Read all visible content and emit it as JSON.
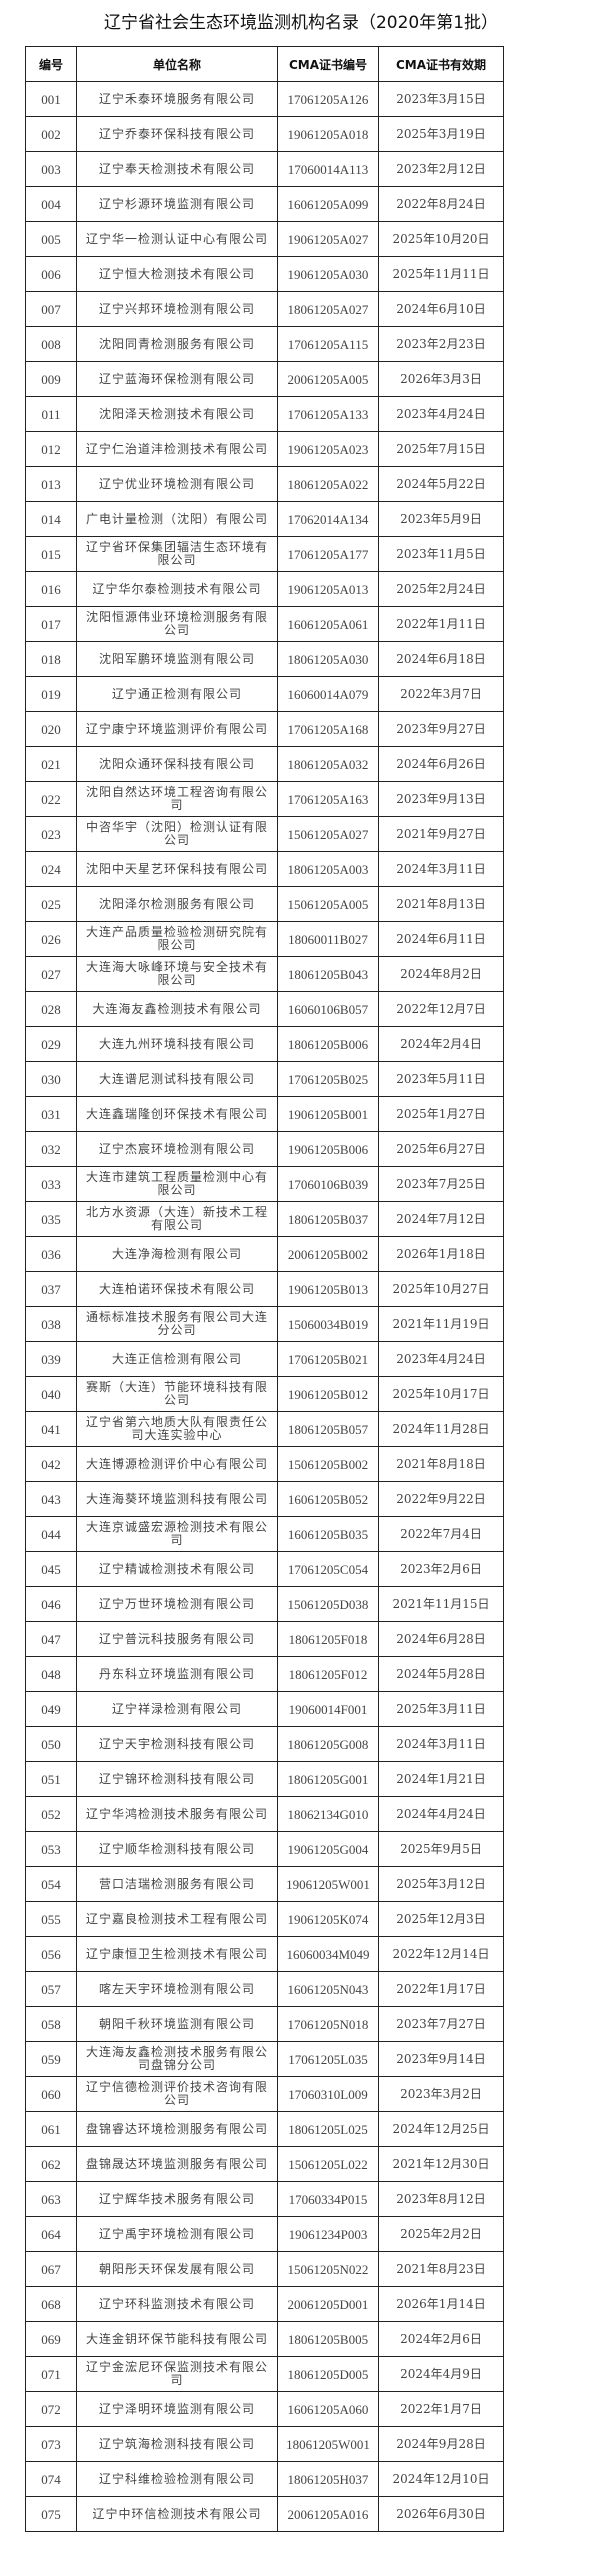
{
  "title": "辽宁省社会生态环境监测机构名录（2020年第1批）",
  "headers": [
    "编号",
    "单位名称",
    "CMA证书编号",
    "CMA证书有效期"
  ],
  "rows": [
    [
      "001",
      "辽宁禾泰环境服务有限公司",
      "17061205A126",
      "2023年3月15日"
    ],
    [
      "002",
      "辽宁乔泰环保科技有限公司",
      "19061205A018",
      "2025年3月19日"
    ],
    [
      "003",
      "辽宁奉天检测技术有限公司",
      "17060014A113",
      "2023年2月12日"
    ],
    [
      "004",
      "辽宁杉源环境监测有限公司",
      "16061205A099",
      "2022年8月24日"
    ],
    [
      "005",
      "辽宁华一检测认证中心有限公司",
      "19061205A027",
      "2025年10月20日"
    ],
    [
      "006",
      "辽宁恒大检测技术有限公司",
      "19061205A030",
      "2025年11月11日"
    ],
    [
      "007",
      "辽宁兴邦环境检测有限公司",
      "18061205A027",
      "2024年6月10日"
    ],
    [
      "008",
      "沈阳同青检测服务有限公司",
      "17061205A115",
      "2023年2月23日"
    ],
    [
      "009",
      "辽宁蓝海环保检测有限公司",
      "20061205A005",
      "2026年3月3日"
    ],
    [
      "011",
      "沈阳泽天检测技术有限公司",
      "17061205A133",
      "2023年4月24日"
    ],
    [
      "012",
      "辽宁仁治道沣检测技术有限公司",
      "19061205A023",
      "2025年7月15日"
    ],
    [
      "013",
      "辽宁优业环境检测有限公司",
      "18061205A022",
      "2024年5月22日"
    ],
    [
      "014",
      "广电计量检测（沈阳）有限公司",
      "17062014A134",
      "2023年5月9日"
    ],
    [
      "015",
      "辽宁省环保集团辐洁生态环境有限公司",
      "17061205A177",
      "2023年11月5日"
    ],
    [
      "016",
      "辽宁华尔泰检测技术有限公司",
      "19061205A013",
      "2025年2月24日"
    ],
    [
      "017",
      "沈阳恒源伟业环境检测服务有限公司",
      "16061205A061",
      "2022年1月11日"
    ],
    [
      "018",
      "沈阳军鹏环境监测有限公司",
      "18061205A030",
      "2024年6月18日"
    ],
    [
      "019",
      "辽宁通正检测有限公司",
      "16060014A079",
      "2022年3月7日"
    ],
    [
      "020",
      "辽宁康宁环境监测评价有限公司",
      "17061205A168",
      "2023年9月27日"
    ],
    [
      "021",
      "沈阳众通环保科技有限公司",
      "18061205A032",
      "2024年6月26日"
    ],
    [
      "022",
      "沈阳自然达环境工程咨询有限公司",
      "17061205A163",
      "2023年9月13日"
    ],
    [
      "023",
      "中咨华宇（沈阳）检测认证有限公司",
      "15061205A027",
      "2021年9月27日"
    ],
    [
      "024",
      "沈阳中天星艺环保科技有限公司",
      "18061205A003",
      "2024年3月11日"
    ],
    [
      "025",
      "沈阳泽尔检测服务有限公司",
      "15061205A005",
      "2021年8月13日"
    ],
    [
      "026",
      "大连产品质量检验检测研究院有限公司",
      "18060011B027",
      "2024年6月11日"
    ],
    [
      "027",
      "大连海大咏峰环境与安全技术有限公司",
      "18061205B043",
      "2024年8月2日"
    ],
    [
      "028",
      "大连海友鑫检测技术有限公司",
      "16060106B057",
      "2022年12月7日"
    ],
    [
      "029",
      "大连九州环境科技有限公司",
      "18061205B006",
      "2024年2月4日"
    ],
    [
      "030",
      "大连谱尼测试科技有限公司",
      "17061205B025",
      "2023年5月11日"
    ],
    [
      "031",
      "大连鑫瑞隆创环保技术有限公司",
      "19061205B001",
      "2025年1月27日"
    ],
    [
      "032",
      "辽宁杰宸环境检测有限公司",
      "19061205B006",
      "2025年6月27日"
    ],
    [
      "033",
      "大连市建筑工程质量检测中心有限公司",
      "17060106B039",
      "2023年7月25日"
    ],
    [
      "035",
      "北方水资源（大连）新技术工程有限公司",
      "18061205B037",
      "2024年7月12日"
    ],
    [
      "036",
      "大连净海检测有限公司",
      "20061205B002",
      "2026年1月18日"
    ],
    [
      "037",
      "大连柏诺环保技术有限公司",
      "19061205B013",
      "2025年10月27日"
    ],
    [
      "038",
      "通标标准技术服务有限公司大连分公司",
      "15060034B019",
      "2021年11月19日"
    ],
    [
      "039",
      "大连正信检测有限公司",
      "17061205B021",
      "2023年4月24日"
    ],
    [
      "040",
      "赛斯（大连）节能环境科技有限公司",
      "19061205B012",
      "2025年10月17日"
    ],
    [
      "041",
      "辽宁省第六地质大队有限责任公司大连实验中心",
      "18061205B057",
      "2024年11月28日"
    ],
    [
      "042",
      "大连博源检测评价中心有限公司",
      "15061205B002",
      "2021年8月18日"
    ],
    [
      "043",
      "大连海葵环境监测科技有限公司",
      "16061205B052",
      "2022年9月22日"
    ],
    [
      "044",
      "大连京诚盛宏源检测技术有限公司",
      "16061205B035",
      "2022年7月4日"
    ],
    [
      "045",
      "辽宁精诚检测技术有限公司",
      "17061205C054",
      "2023年2月6日"
    ],
    [
      "046",
      "辽宁万世环境检测有限公司",
      "15061205D038",
      "2021年11月15日"
    ],
    [
      "047",
      "辽宁普沅科技服务有限公司",
      "18061205F018",
      "2024年6月28日"
    ],
    [
      "048",
      "丹东科立环境监测有限公司",
      "18061205F012",
      "2024年5月28日"
    ],
    [
      "049",
      "辽宁祥渌检测有限公司",
      "19060014F001",
      "2025年3月11日"
    ],
    [
      "050",
      "辽宁天宇检测科技有限公司",
      "18061205G008",
      "2024年3月11日"
    ],
    [
      "051",
      "辽宁锦环检测科技有限公司",
      "18061205G001",
      "2024年1月21日"
    ],
    [
      "052",
      "辽宁华鸿检测技术服务有限公司",
      "18062134G010",
      "2024年4月24日"
    ],
    [
      "053",
      "辽宁顺华检测科技有限公司",
      "19061205G004",
      "2025年9月5日"
    ],
    [
      "054",
      "营口洁瑞检测服务有限公司",
      "19061205W001",
      "2025年3月12日"
    ],
    [
      "055",
      "辽宁嘉良检测技术工程有限公司",
      "19061205K074",
      "2025年12月3日"
    ],
    [
      "056",
      "辽宁康恒卫生检测技术有限公司",
      "16060034M049",
      "2022年12月14日"
    ],
    [
      "057",
      "喀左天宇环境检测有限公司",
      "16061205N043",
      "2022年1月17日"
    ],
    [
      "058",
      "朝阳千秋环境监测有限公司",
      "17061205N018",
      "2023年7月27日"
    ],
    [
      "059",
      "大连海友鑫检测技术服务有限公司盘锦分公司",
      "17061205L035",
      "2023年9月14日"
    ],
    [
      "060",
      "辽宁信德检测评价技术咨询有限公司",
      "17060310L009",
      "2023年3月2日"
    ],
    [
      "061",
      "盘锦睿达环境检测服务有限公司",
      "18061205L025",
      "2024年12月25日"
    ],
    [
      "062",
      "盘锦晟达环境监测服务有限公司",
      "15061205L022",
      "2021年12月30日"
    ],
    [
      "063",
      "辽宁辉华技术服务有限公司",
      "17060334P015",
      "2023年8月12日"
    ],
    [
      "064",
      "辽宁禹宇环境检测有限公司",
      "19061234P003",
      "2025年2月2日"
    ],
    [
      "067",
      "朝阳彤天环保发展有限公司",
      "15061205N022",
      "2021年8月23日"
    ],
    [
      "068",
      "辽宁环科监测技术有限公司",
      "20061205D001",
      "2026年1月14日"
    ],
    [
      "069",
      "大连金钥环保节能科技有限公司",
      "18061205B005",
      "2024年2月6日"
    ],
    [
      "071",
      "辽宁金浤尼环保监测技术有限公司",
      "18061205D005",
      "2024年4月9日"
    ],
    [
      "072",
      "辽宁泽明环境监测有限公司",
      "16061205A060",
      "2022年1月7日"
    ],
    [
      "073",
      "辽宁筑海检测科技有限公司",
      "18061205W001",
      "2024年9月28日"
    ],
    [
      "074",
      "辽宁科维检验检测有限公司",
      "18061205H037",
      "2024年12月10日"
    ],
    [
      "075",
      "辽宁中环信检测技术有限公司",
      "20061205A016",
      "2026年6月30日"
    ]
  ]
}
